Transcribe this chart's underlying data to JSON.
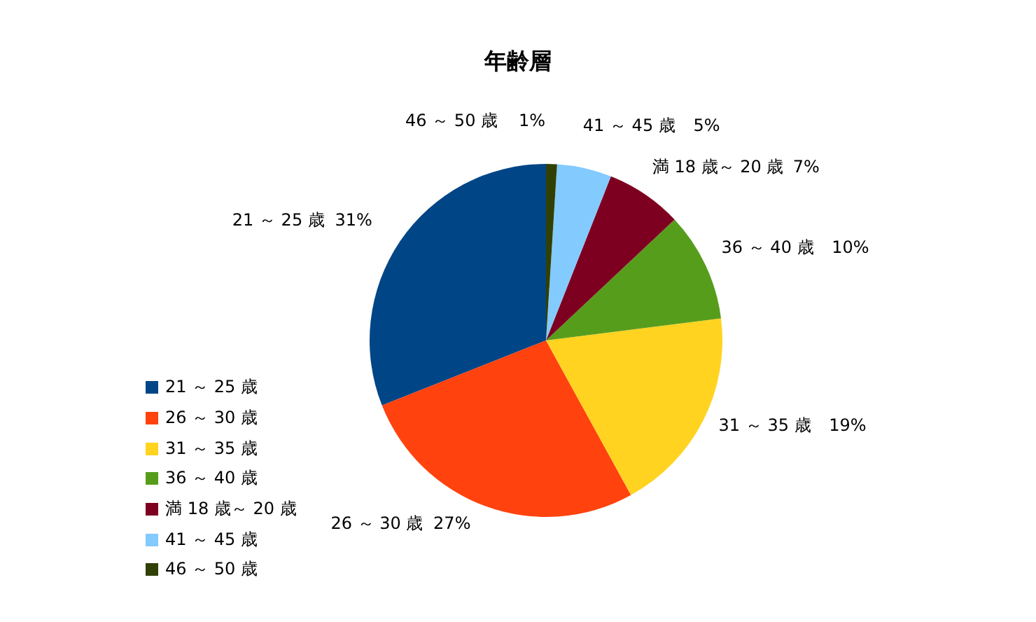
{
  "chart_data": {
    "type": "pie",
    "title": "年齢層",
    "categories": [
      "21 ～ 25 歳",
      "26 ～ 30 歳",
      "31 ～ 35 歳",
      "36 ～ 40 歳",
      "満 18 歳～ 20 歳",
      "41 ～ 45 歳",
      "46 ～ 50 歳"
    ],
    "values": [
      31,
      27,
      19,
      10,
      7,
      5,
      1
    ],
    "colors": [
      "#004586",
      "#ff420e",
      "#ffd320",
      "#579d1c",
      "#7e0021",
      "#83caff",
      "#314004"
    ],
    "value_labels": [
      "31%",
      "27%",
      "19%",
      "10%",
      "7%",
      "5%",
      "1%"
    ],
    "legend": "left"
  }
}
